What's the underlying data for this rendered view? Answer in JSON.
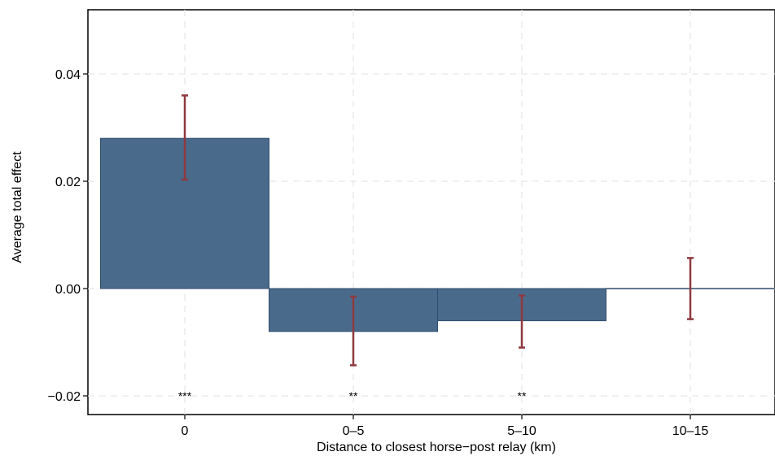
{
  "chart_data": {
    "type": "bar",
    "title": "",
    "xlabel": "Distance to closest horse−post relay (km)",
    "ylabel": "Average total effect",
    "categories": [
      "0",
      "0–5",
      "5–10",
      "10–15"
    ],
    "values": [
      0.028,
      -0.008,
      -0.006,
      0.0
    ],
    "ci_lower": [
      0.0203,
      -0.0143,
      -0.011,
      -0.0057
    ],
    "ci_upper": [
      0.036,
      -0.0015,
      -0.0013,
      0.0057
    ],
    "significance": [
      "***",
      "**",
      "**",
      ""
    ],
    "yticks": [
      -0.02,
      0.0,
      0.02,
      0.04
    ],
    "ytick_labels": [
      "−0.02",
      "0.00",
      "0.02",
      "0.04"
    ],
    "ylim": [
      -0.0205,
      0.052
    ],
    "grid": true,
    "colors": {
      "bar": "#4a6a8c",
      "bar_edge": "#2f4d6e",
      "errorbar": "#8e3a3f",
      "grid": "#e6e6e6"
    }
  }
}
